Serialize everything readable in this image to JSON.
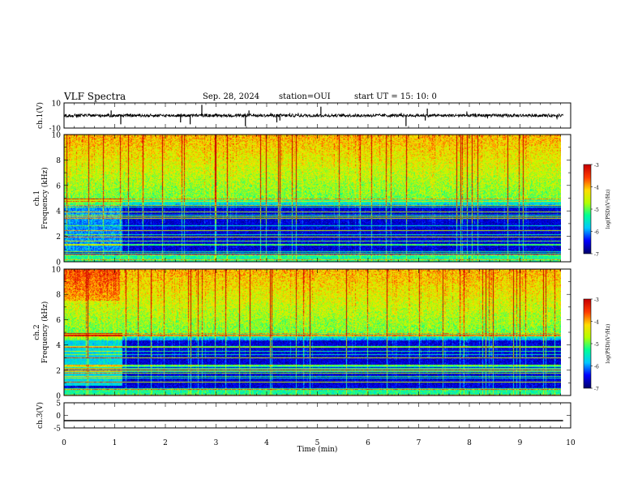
{
  "header": {
    "title": "VLF Spectra",
    "date": "Sep. 28, 2024",
    "station": "station=OUI",
    "start": "start  UT  =   15: 10: 0"
  },
  "chart_data": [
    {
      "type": "line",
      "name": "ch1-waveform",
      "ylabel": "ch.1(V)",
      "ylim": [
        -10,
        10
      ],
      "yticks": [
        "10",
        "-10"
      ],
      "baseline": 0,
      "noise_amplitude": 1.2,
      "spikes": [
        0.93,
        2.3,
        2.49,
        2.72,
        4.26,
        4.2,
        5.07,
        6.75,
        7.13,
        7.17,
        1.12,
        3.58,
        3.65
      ]
    },
    {
      "type": "heatmap",
      "name": "ch1-spectrogram",
      "ylabel": "Frequency (kHz)",
      "channel": "ch.1",
      "ylim": [
        0,
        10
      ],
      "yticks": [
        "0",
        "2",
        "4",
        "6",
        "8",
        "10"
      ],
      "xlim": [
        0,
        9.85
      ],
      "noise_floor_khz": 5.0,
      "colorbar": {
        "label": "log(PSD)(V²/Hz)",
        "range": [
          -7,
          -3
        ],
        "ticks": [
          "-3",
          "-4",
          "-5",
          "-6",
          "-7"
        ]
      }
    },
    {
      "type": "heatmap",
      "name": "ch2-spectrogram",
      "ylabel": "Frequency (kHz)",
      "channel": "ch.2",
      "ylim": [
        0,
        10
      ],
      "yticks": [
        "0",
        "2",
        "4",
        "6",
        "8",
        "10"
      ],
      "xlim": [
        0,
        9.85
      ],
      "noise_floor_khz": 5.0,
      "colorbar": {
        "label": "log(PSD)(V²/Hz)",
        "range": [
          -7,
          -3
        ],
        "ticks": [
          "-3",
          "-4",
          "-5",
          "-6",
          "-7"
        ]
      }
    },
    {
      "type": "line",
      "name": "ch3-waveform",
      "ylabel": "ch.3(V)",
      "ylim": [
        -5,
        5
      ],
      "yticks": [
        "5",
        "0",
        "-5"
      ],
      "baseline": -2.1
    }
  ],
  "xaxis": {
    "label": "Time  (min)",
    "range": [
      0,
      10
    ],
    "ticks": [
      "0",
      "1",
      "2",
      "3",
      "4",
      "5",
      "6",
      "7",
      "8",
      "9",
      "10"
    ]
  },
  "colorscale": [
    "#00006e",
    "#0000ff",
    "#00c8ff",
    "#00ff96",
    "#b4ff00",
    "#ffdc00",
    "#ff3c00",
    "#c80000"
  ]
}
